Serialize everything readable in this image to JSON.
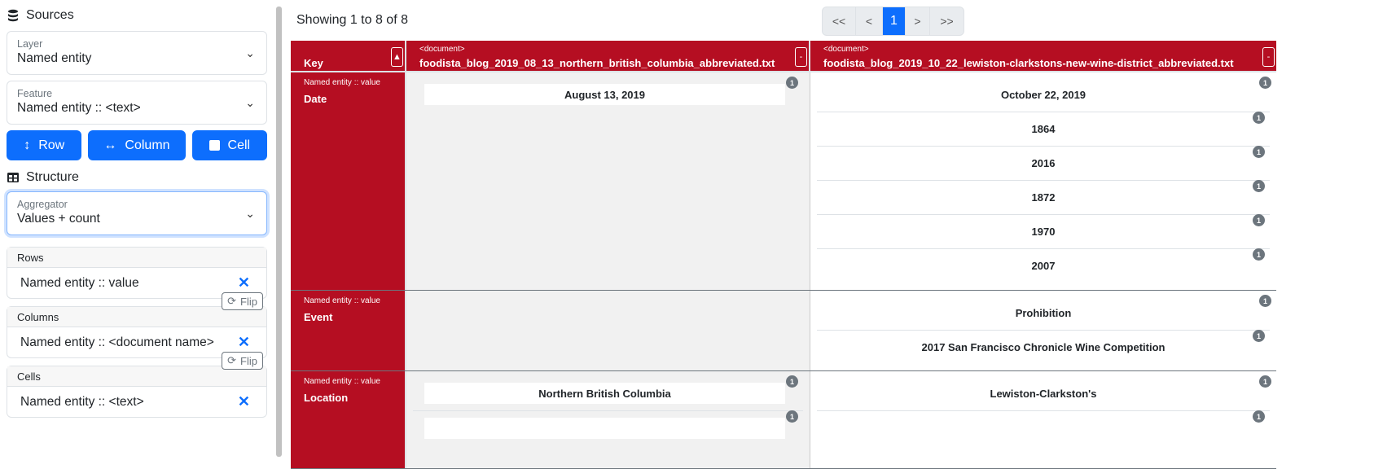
{
  "sidebar": {
    "sources_title": "Sources",
    "layer": {
      "label": "Layer",
      "value": "Named entity"
    },
    "feature": {
      "label": "Feature",
      "value": "Named entity :: <text>"
    },
    "buttons": {
      "row": "Row",
      "column": "Column",
      "cell": "Cell"
    },
    "structure_title": "Structure",
    "aggregator": {
      "label": "Aggregator",
      "value": "Values + count"
    },
    "rows": {
      "label": "Rows",
      "value": "Named entity :: value"
    },
    "columns": {
      "label": "Columns",
      "value": "Named entity :: <document name>"
    },
    "cells": {
      "label": "Cells",
      "value": "Named entity :: <text>"
    },
    "flip_label": "Flip",
    "remove_symbol": "✕"
  },
  "main": {
    "showing": "Showing 1 to 8 of 8",
    "pager": {
      "first": "<<",
      "prev": "<",
      "current": "1",
      "next": ">",
      "last": ">>"
    },
    "table": {
      "key_header": "Key",
      "columns": [
        {
          "type": "<document>",
          "name": "foodista_blog_2019_08_13_northern_british_columbia_abbreviated.txt"
        },
        {
          "type": "<document>",
          "name": "foodista_blog_2019_10_22_lewiston-clarkstons-new-wine-district_abbreviated.txt"
        }
      ],
      "rows": [
        {
          "type": "Named entity :: value",
          "key": "Date",
          "c1": [
            {
              "v": "August 13, 2019",
              "n": "1"
            }
          ],
          "c2": [
            {
              "v": "October 22, 2019",
              "n": "1"
            },
            {
              "v": "1864",
              "n": "1"
            },
            {
              "v": "2016",
              "n": "1"
            },
            {
              "v": "1872",
              "n": "1"
            },
            {
              "v": "1970",
              "n": "1"
            },
            {
              "v": "2007",
              "n": "1"
            }
          ]
        },
        {
          "type": "Named entity :: value",
          "key": "Event",
          "c1": [],
          "c2": [
            {
              "v": "Prohibition",
              "n": "1"
            },
            {
              "v": "2017 San Francisco Chronicle Wine Competition",
              "n": "1"
            }
          ]
        },
        {
          "type": "Named entity :: value",
          "key": "Location",
          "c1": [
            {
              "v": "Northern British Columbia",
              "n": "1"
            },
            {
              "v": "",
              "n": "1"
            }
          ],
          "c2": [
            {
              "v": "Lewiston-Clarkston's",
              "n": "1"
            },
            {
              "v": "",
              "n": "1"
            }
          ]
        }
      ]
    },
    "colors": {
      "header": "#b50e22",
      "primary": "#0d6efd"
    }
  }
}
